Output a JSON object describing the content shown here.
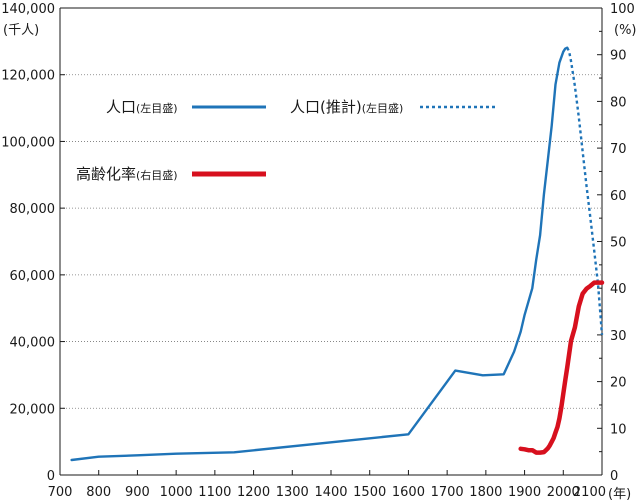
{
  "chart_data": {
    "type": "line",
    "x_axis": {
      "min": 700,
      "max": 2100,
      "ticks": [
        700,
        800,
        900,
        1000,
        1100,
        1200,
        1300,
        1400,
        1500,
        1600,
        1700,
        1800,
        1900,
        2000,
        2100
      ],
      "tick_labels": [
        "700",
        "800",
        "900",
        "1000",
        "1100",
        "1200",
        "1300",
        "1400",
        "1500",
        "1600",
        "1700",
        "1800",
        "1900",
        "2000",
        "2100"
      ],
      "unit": "(年)"
    },
    "y_left": {
      "min": 0,
      "max": 140000,
      "ticks": [
        0,
        20000,
        40000,
        60000,
        80000,
        100000,
        120000,
        140000
      ],
      "tick_labels": [
        "0",
        "20,000",
        "40,000",
        "60,000",
        "80,000",
        "100,000",
        "120,000",
        "140,000"
      ],
      "unit": "(千人)"
    },
    "y_right": {
      "min": 0,
      "max": 100,
      "ticks": [
        0,
        10,
        20,
        30,
        40,
        50,
        60,
        70,
        80,
        90,
        100
      ],
      "tick_labels": [
        "0",
        "10",
        "20",
        "30",
        "40",
        "50",
        "60",
        "70",
        "80",
        "90",
        "100"
      ],
      "unit": "(%)"
    },
    "grid": "horizontal-dotted",
    "series": [
      {
        "name": "人口",
        "name_note": "(左目盛)",
        "axis": "left",
        "style": "solid",
        "color": "#1f74b8",
        "x": [
          730,
          800,
          900,
          1000,
          1150,
          1600,
          1721,
          1792,
          1846,
          1873,
          1890,
          1900,
          1920,
          1930,
          1940,
          1950,
          1960,
          1970,
          1980,
          1990,
          2000,
          2005,
          2010
        ],
        "y": [
          4500,
          5500,
          5900,
          6400,
          6800,
          12200,
          31300,
          29900,
          30200,
          37000,
          43000,
          48000,
          56000,
          64500,
          71900,
          84100,
          94300,
          104700,
          117100,
          123600,
          126900,
          127800,
          128100
        ]
      },
      {
        "name": "人口(推計)",
        "name_note": "(左目盛)",
        "axis": "left",
        "style": "dotted",
        "color": "#1f74b8",
        "x": [
          2010,
          2015,
          2020,
          2030,
          2040,
          2050,
          2060,
          2070,
          2080,
          2090,
          2100
        ],
        "y": [
          128100,
          127000,
          124100,
          116600,
          107300,
          97100,
          86700,
          77000,
          67000,
          57000,
          42000
        ]
      },
      {
        "name": "高齢化率",
        "name_note": "(右目盛)",
        "axis": "right",
        "style": "solid",
        "color": "#d7101e",
        "x": [
          1890,
          1900,
          1910,
          1920,
          1930,
          1940,
          1950,
          1955,
          1960,
          1965,
          1970,
          1975,
          1980,
          1985,
          1990,
          1995,
          2000,
          2005,
          2010,
          2020,
          2030,
          2040,
          2050,
          2060,
          2070,
          2080,
          2090,
          2100
        ],
        "y": [
          5.6,
          5.5,
          5.3,
          5.3,
          4.8,
          4.8,
          4.9,
          5.3,
          5.7,
          6.3,
          7.1,
          7.9,
          9.1,
          10.3,
          12.1,
          14.6,
          17.4,
          20.2,
          23.0,
          28.7,
          31.6,
          36.1,
          38.8,
          39.9,
          40.5,
          41.2,
          41.2,
          41.2
        ]
      }
    ]
  }
}
